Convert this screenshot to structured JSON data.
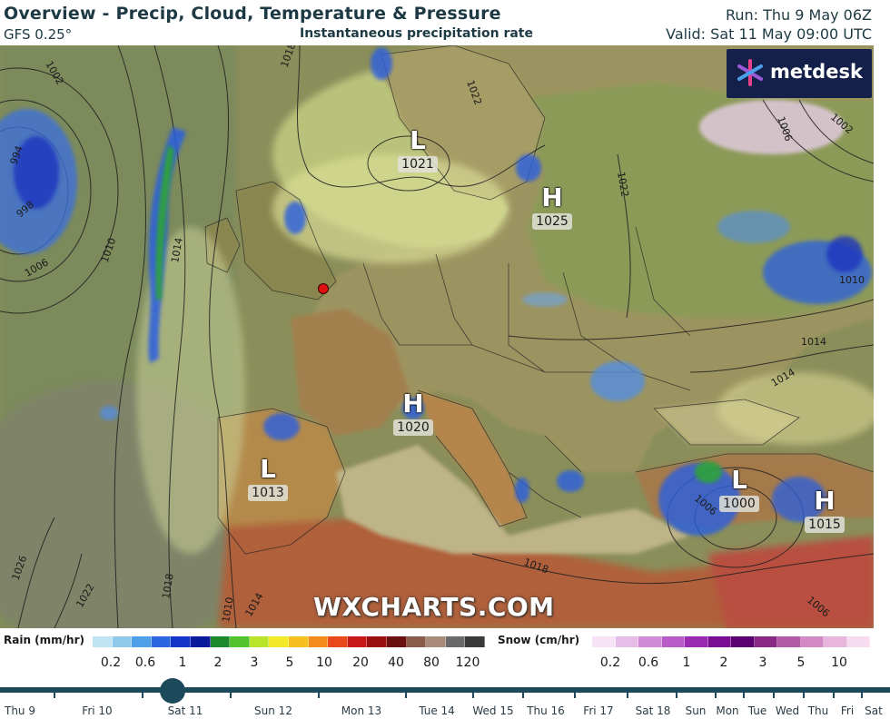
{
  "header": {
    "title": "Overview - Precip, Cloud, Temperature & Pressure",
    "model": "GFS 0.25°",
    "subtitle": "Instantaneous precipitation rate",
    "run": "Run: Thu 9 May 06Z",
    "valid": "Valid: Sat 11 May 09:00 UTC"
  },
  "brand": {
    "logo_text": "metdesk",
    "watermark": "WXCHARTS.COM"
  },
  "pressure_centers": [
    {
      "type": "L",
      "value": "1021"
    },
    {
      "type": "H",
      "value": "1025"
    },
    {
      "type": "H",
      "value": "1020"
    },
    {
      "type": "L",
      "value": "1013"
    },
    {
      "type": "L",
      "value": "1000"
    },
    {
      "type": "H",
      "value": "1015"
    }
  ],
  "isobar_labels": [
    "1002",
    "994",
    "998",
    "1006",
    "1010",
    "1014",
    "1018",
    "1022",
    "1026",
    "1022",
    "1018",
    "1014",
    "1010",
    "1006",
    "1002",
    "1010",
    "1006",
    "1014",
    "1018",
    "1014",
    "1006",
    "1022"
  ],
  "legend": {
    "rain_label": "Rain (mm/hr)",
    "snow_label": "Snow (cm/hr)",
    "rain_ticks": [
      "0.2",
      "0.6",
      "1",
      "2",
      "3",
      "5",
      "10",
      "20",
      "40",
      "80",
      "120"
    ],
    "snow_ticks": [
      "0.2",
      "0.6",
      "1",
      "2",
      "3",
      "5",
      "10"
    ],
    "rain_colors": [
      "#bfe3f2",
      "#8ec9ec",
      "#4f9ee8",
      "#2a67e0",
      "#1436c8",
      "#0a1a9a",
      "#1c8a2c",
      "#52c22c",
      "#b8e42a",
      "#f2ea28",
      "#f7c020",
      "#f28a1c",
      "#e8481a",
      "#c81818",
      "#9a1010",
      "#6a1010",
      "#8a5a4a",
      "#a88a7a",
      "#6a6a6a",
      "#3a3a3a"
    ],
    "snow_colors": [
      "#f6e4f6",
      "#e6bce8",
      "#d08ad8",
      "#b85ac8",
      "#9a2ab0",
      "#7a0e92",
      "#5a0070",
      "#8a2a86",
      "#b25aa6",
      "#d28ac4",
      "#e8b6dc",
      "#f6dcee"
    ]
  },
  "timeline": {
    "labels": [
      "Thu 9",
      "Fri 10",
      "Sat 11",
      "Sun 12",
      "Mon 13",
      "Tue 14",
      "Wed 15",
      "Thu 16",
      "Fri 17",
      "Sat 18",
      "Sun",
      "Mon",
      "Tue",
      "Wed",
      "Thu",
      "Fri",
      "Sat"
    ]
  },
  "city_marker": {
    "color": "#e01010"
  }
}
